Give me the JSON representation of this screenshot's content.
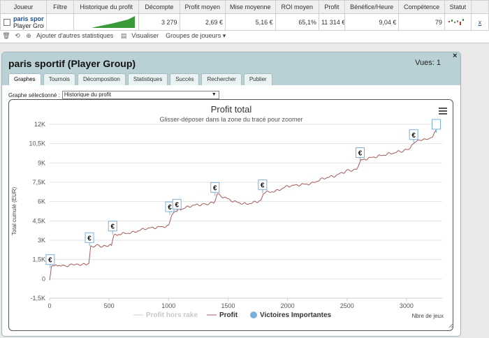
{
  "table": {
    "headers": [
      "Joueur",
      "Filtre",
      "Historique du profit",
      "Décompte",
      "Profit moyen",
      "Mise moyenne",
      "ROI moyen",
      "Profit",
      "Bénéfice/Heure",
      "Compétence",
      "Statut"
    ],
    "row": {
      "player_name": "paris sportif",
      "player_group": "Player Group",
      "count": "3 279",
      "avg_profit": "2,69 €",
      "avg_stake": "5,16 €",
      "avg_roi": "65,1%",
      "profit": "11 314 €",
      "profit_per_hour": "9,04 €",
      "skill": "79",
      "remove": "x"
    }
  },
  "toolbar": {
    "add_stats": "Ajouter d'autres statistiques",
    "visualize": "Visualiser",
    "groups": "Groupes de joueurs"
  },
  "panel": {
    "title": "paris sportif (Player Group)",
    "views": "Vues: 1",
    "close": "×",
    "tabs": [
      "Graphes",
      "Tournois",
      "Décomposition",
      "Statistiques",
      "Succès",
      "Rechercher",
      "Publier"
    ],
    "graph_label": "Graphe sélectionné :",
    "graph_selected": "Historique du profit"
  },
  "colors": {
    "profit_line": "#a85a5a",
    "rake_line": "#cccccc",
    "marker": "#7ab0d8",
    "panel_header": "#b9d0d4"
  },
  "chart_data": {
    "type": "line",
    "title": "Profit total",
    "subtitle": "Glisser-déposer dans la zone du tracé pour zoomer",
    "ylabel": "Total cumulé (EUR)",
    "xlabel": "Nbre de jeux",
    "ylim": [
      -1500,
      12000
    ],
    "xlim": [
      0,
      3300
    ],
    "y_ticks": [
      "-1,5K",
      "0",
      "1,5K",
      "3K",
      "4,5K",
      "6K",
      "7,5K",
      "9K",
      "10,5K",
      "12K"
    ],
    "x_ticks": [
      "0",
      "500",
      "1000",
      "1500",
      "2000",
      "2500",
      "3000"
    ],
    "legend": [
      "Profit hors rake",
      "Profit",
      "Victoires Importantes"
    ],
    "series": [
      {
        "name": "Profit",
        "x": [
          0,
          15,
          60,
          120,
          200,
          280,
          330,
          345,
          400,
          470,
          520,
          540,
          600,
          700,
          800,
          900,
          1000,
          1030,
          1050,
          1065,
          1100,
          1200,
          1300,
          1380,
          1410,
          1450,
          1550,
          1650,
          1750,
          1780,
          1800,
          1900,
          2000,
          2100,
          2200,
          2300,
          2400,
          2500,
          2580,
          2620,
          2650,
          2750,
          2850,
          2950,
          3030,
          3070,
          3150,
          3220,
          3250
        ],
        "y": [
          -100,
          900,
          1100,
          1000,
          1100,
          1150,
          1200,
          2500,
          2600,
          2500,
          2600,
          3400,
          3500,
          3600,
          3900,
          4000,
          4100,
          5000,
          5200,
          5300,
          5400,
          5700,
          5800,
          5900,
          6600,
          6400,
          6000,
          5800,
          6000,
          6200,
          6700,
          6800,
          7200,
          7300,
          7400,
          7800,
          8000,
          8400,
          8500,
          9200,
          9300,
          9500,
          9700,
          9900,
          10100,
          10700,
          10800,
          11000,
          11600
        ]
      }
    ],
    "important_wins": [
      {
        "x": 5,
        "y": 1500,
        "label": "€"
      },
      {
        "x": 335,
        "y": 3200,
        "label": "€"
      },
      {
        "x": 530,
        "y": 4100,
        "label": "€"
      },
      {
        "x": 1010,
        "y": 5600,
        "label": "€"
      },
      {
        "x": 1070,
        "y": 5800,
        "label": "€"
      },
      {
        "x": 1390,
        "y": 7100,
        "label": "€"
      },
      {
        "x": 1790,
        "y": 7300,
        "label": "€"
      },
      {
        "x": 2610,
        "y": 9800,
        "label": "€"
      },
      {
        "x": 3060,
        "y": 11200,
        "label": "€"
      },
      {
        "x": 3250,
        "y": 12000,
        "label": ""
      }
    ]
  }
}
